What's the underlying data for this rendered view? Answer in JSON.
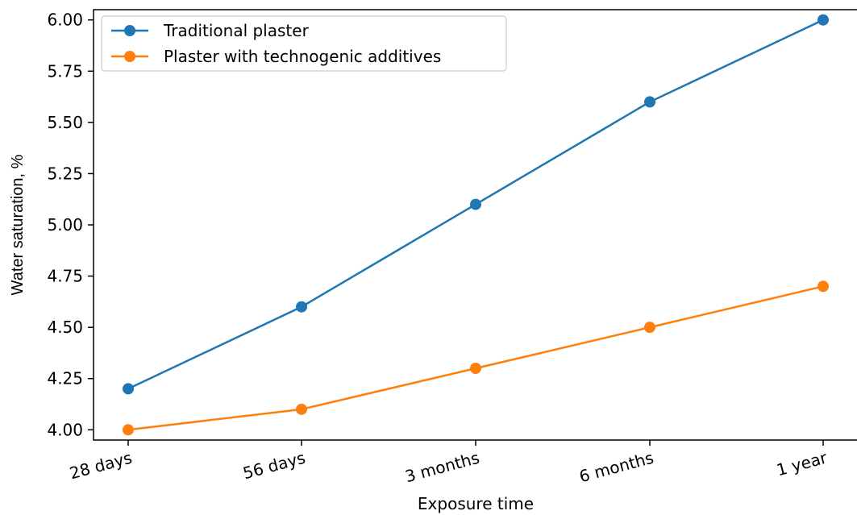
{
  "chart_data": {
    "type": "line",
    "title": "",
    "xlabel": "Exposure time",
    "ylabel": "Water saturation, %",
    "categories": [
      "28 days",
      "56 days",
      "3 months",
      "6 months",
      "1 year"
    ],
    "ylim": [
      3.95,
      6.05
    ],
    "yticks": [
      "4.00",
      "4.25",
      "4.50",
      "4.75",
      "5.00",
      "5.25",
      "5.50",
      "5.75",
      "6.00"
    ],
    "grid": false,
    "legend_position": "top-left",
    "series": [
      {
        "name": "Traditional plaster",
        "color": "#1f77b4",
        "values": [
          4.2,
          4.6,
          5.1,
          5.6,
          6.0
        ]
      },
      {
        "name": "Plaster with technogenic additives",
        "color": "#ff7f0e",
        "values": [
          4.0,
          4.1,
          4.3,
          4.5,
          4.7
        ]
      }
    ]
  }
}
